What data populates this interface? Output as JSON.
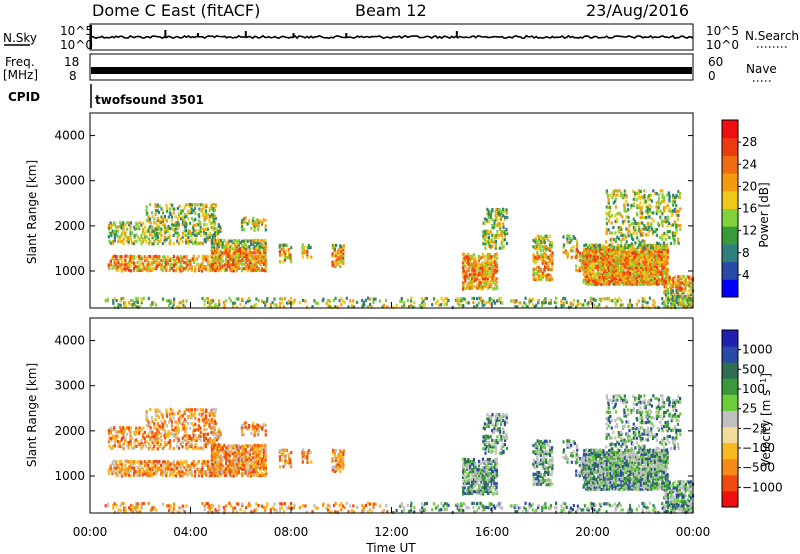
{
  "header": {
    "title": "Dome C East (fitACF)",
    "beam": "Beam 12",
    "date": "23/Aug/2016"
  },
  "status_panels": {
    "nsky_label": "N.Sky",
    "nsky_ticks": [
      "10^5",
      "10^0"
    ],
    "nsearch_label": "N.Search",
    "nsearch_ticks": [
      "10^5",
      "10^0"
    ],
    "freq_label": "Freq.",
    "freq_unit": "[MHz]",
    "freq_ticks": [
      "18",
      "8"
    ],
    "nave_label": "Nave",
    "nave_ticks": [
      "60",
      "0"
    ],
    "cpid_label": "CPID",
    "cpid_value": "twofsound 3501"
  },
  "colors": {
    "power_scale": [
      "#0000ff",
      "#2a4aa8",
      "#2f7f7f",
      "#3a9a3a",
      "#7fd23a",
      "#f0c818",
      "#f39a10",
      "#f06c10",
      "#ee3a10",
      "#ee1010"
    ],
    "velocity_scale": [
      "#ee1010",
      "#f04a10",
      "#f58a18",
      "#f7b820",
      "#f2dc9a",
      "#c0c0c0",
      "#6ccc3a",
      "#3a9a3a",
      "#2f6f4f",
      "#2a4aa8",
      "#2020b0"
    ]
  },
  "chart_data": [
    {
      "type": "heatmap",
      "name": "power",
      "xlabel": "",
      "ylabel": "Slant Range [km]",
      "xlim": [
        0,
        24
      ],
      "ylim": [
        180,
        4500
      ],
      "yticks": [
        "1000",
        "2000",
        "3000",
        "4000"
      ],
      "colorbar_label": "Power [dB]",
      "colorbar_range": [
        0,
        32
      ],
      "colorbar_ticks": [
        "4",
        "8",
        "12",
        "16",
        "20",
        "24",
        "28"
      ]
    },
    {
      "type": "heatmap",
      "name": "velocity",
      "xlabel": "Time UT",
      "ylabel": "Slant Range [km]",
      "xlim": [
        0,
        24
      ],
      "ylim": [
        180,
        4500
      ],
      "yticks": [
        "1000",
        "2000",
        "3000",
        "4000"
      ],
      "xticks": [
        "00:00",
        "04:00",
        "08:00",
        "12:00",
        "16:00",
        "20:00",
        "00:00"
      ],
      "colorbar_label": "Velocity [m s^-1]",
      "colorbar_ticks": [
        "1000",
        "500",
        "100",
        "25",
        "−25",
        "−100",
        "−500",
        "−1000"
      ]
    }
  ]
}
